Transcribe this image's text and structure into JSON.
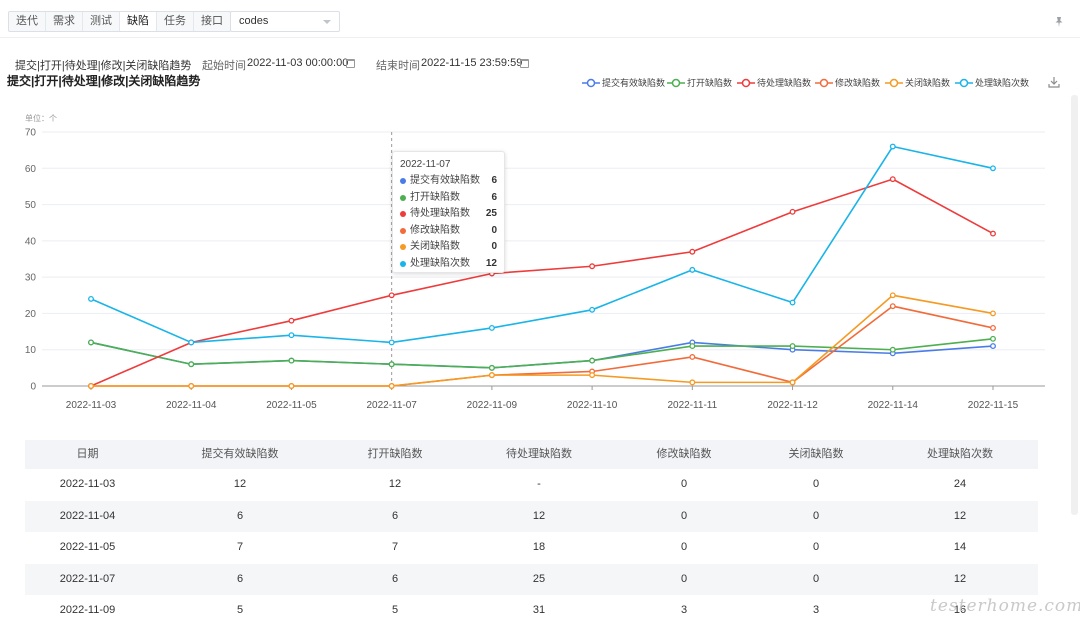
{
  "toolbar": {
    "tabs": [
      {
        "label": "迭代",
        "active": false
      },
      {
        "label": "需求",
        "active": false
      },
      {
        "label": "测试",
        "active": false
      },
      {
        "label": "缺陷",
        "active": true
      },
      {
        "label": "任务",
        "active": false
      },
      {
        "label": "接口",
        "active": false
      }
    ],
    "project_select": "codes"
  },
  "filters": {
    "report_select": "提交|打开|待处理|修改|关闭缺陷趋势",
    "start_label": "起始时间",
    "start_value": "2022-11-03 00:00:00",
    "end_label": "结束时间",
    "end_value": "2022-11-15 23:59:59"
  },
  "chart_data": {
    "type": "line",
    "title": "提交|打开|待处理|修改|关闭缺陷趋势",
    "unit_label": "单位：个",
    "x": [
      "2022-11-03",
      "2022-11-04",
      "2022-11-05",
      "2022-11-07",
      "2022-11-09",
      "2022-11-10",
      "2022-11-11",
      "2022-11-12",
      "2022-11-14",
      "2022-11-15"
    ],
    "ylim": [
      0,
      70
    ],
    "yticks": [
      0,
      10,
      20,
      30,
      40,
      50,
      60,
      70
    ],
    "grid": true,
    "legend_position": "top-right",
    "series": [
      {
        "name": "提交有效缺陷数",
        "color": "#4a7ce8",
        "values": [
          12,
          6,
          7,
          6,
          5,
          7,
          12,
          10,
          9,
          11
        ]
      },
      {
        "name": "打开缺陷数",
        "color": "#4caf50",
        "values": [
          12,
          6,
          7,
          6,
          5,
          7,
          11,
          11,
          10,
          13
        ]
      },
      {
        "name": "待处理缺陷数",
        "color": "#ee3b3b",
        "values": [
          null,
          12,
          18,
          25,
          31,
          33,
          37,
          48,
          57,
          42
        ]
      },
      {
        "name": "修改缺陷数",
        "color": "#f26b3a",
        "values": [
          0,
          0,
          0,
          0,
          3,
          4,
          8,
          1,
          22,
          16
        ]
      },
      {
        "name": "关闭缺陷数",
        "color": "#f59a23",
        "values": [
          0,
          0,
          0,
          0,
          3,
          3,
          1,
          1,
          25,
          20
        ]
      },
      {
        "name": "处理缺陷次数",
        "color": "#19b4e8",
        "values": [
          24,
          12,
          14,
          12,
          16,
          21,
          32,
          23,
          66,
          60
        ]
      }
    ]
  },
  "tooltip": {
    "date": "2022-11-07",
    "rows": [
      {
        "name": "提交有效缺陷数",
        "value": "6",
        "color": "#4a7ce8"
      },
      {
        "name": "打开缺陷数",
        "value": "6",
        "color": "#4caf50"
      },
      {
        "name": "待处理缺陷数",
        "value": "25",
        "color": "#ee3b3b"
      },
      {
        "name": "修改缺陷数",
        "value": "0",
        "color": "#f26b3a"
      },
      {
        "name": "关闭缺陷数",
        "value": "0",
        "color": "#f59a23"
      },
      {
        "name": "处理缺陷次数",
        "value": "12",
        "color": "#19b4e8"
      }
    ]
  },
  "table": {
    "headers": [
      "日期",
      "提交有效缺陷数",
      "打开缺陷数",
      "待处理缺陷数",
      "修改缺陷数",
      "关闭缺陷数",
      "处理缺陷次数"
    ],
    "rows": [
      [
        "2022-11-03",
        "12",
        "12",
        "-",
        "0",
        "0",
        "24"
      ],
      [
        "2022-11-04",
        "6",
        "6",
        "12",
        "0",
        "0",
        "12"
      ],
      [
        "2022-11-05",
        "7",
        "7",
        "18",
        "0",
        "0",
        "14"
      ],
      [
        "2022-11-07",
        "6",
        "6",
        "25",
        "0",
        "0",
        "12"
      ],
      [
        "2022-11-09",
        "5",
        "5",
        "31",
        "3",
        "3",
        "16"
      ]
    ]
  },
  "watermark": "testerhome.com",
  "icons": {
    "pin": "pin-icon",
    "download": "download-icon",
    "calendar": "calendar-icon"
  }
}
